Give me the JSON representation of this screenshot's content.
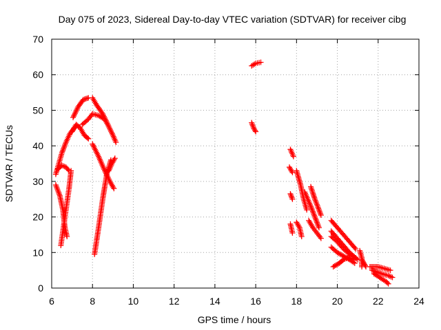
{
  "chart_data": {
    "type": "scatter",
    "title": "Day 075 of 2023, Sidereal Day-to-day VTEC variation (SDTVAR) for receiver cibg",
    "xlabel": "GPS time / hours",
    "ylabel": "SDTVAR / TECUs",
    "xlim": [
      6,
      24
    ],
    "ylim": [
      0,
      70
    ],
    "xticks": [
      6,
      8,
      10,
      12,
      14,
      16,
      18,
      20,
      22,
      24
    ],
    "yticks": [
      0,
      10,
      20,
      30,
      40,
      50,
      60,
      70
    ],
    "grid": true,
    "marker": "+",
    "color": "#ff0000",
    "segments": [
      [
        [
          6.2,
          32
        ],
        [
          6.35,
          35
        ],
        [
          6.5,
          38
        ],
        [
          6.7,
          41
        ],
        [
          6.9,
          43.5
        ],
        [
          7.1,
          45
        ]
      ],
      [
        [
          6.3,
          33.5
        ],
        [
          6.5,
          34.5
        ],
        [
          6.7,
          34
        ],
        [
          6.85,
          33
        ]
      ],
      [
        [
          6.2,
          29
        ],
        [
          6.4,
          26
        ],
        [
          6.55,
          22
        ],
        [
          6.65,
          17
        ],
        [
          6.75,
          14.5
        ]
      ],
      [
        [
          6.45,
          12
        ],
        [
          6.55,
          16
        ],
        [
          6.65,
          20
        ],
        [
          6.75,
          24
        ],
        [
          6.85,
          28
        ],
        [
          6.95,
          33
        ]
      ],
      [
        [
          7.0,
          44
        ],
        [
          7.2,
          46
        ],
        [
          7.4,
          45
        ],
        [
          7.6,
          43
        ],
        [
          7.8,
          42
        ]
      ],
      [
        [
          7.05,
          48
        ],
        [
          7.3,
          51
        ],
        [
          7.55,
          53
        ],
        [
          7.8,
          53.5
        ]
      ],
      [
        [
          7.5,
          46
        ],
        [
          7.8,
          47.5
        ],
        [
          8.0,
          49
        ],
        [
          8.3,
          48.5
        ],
        [
          8.6,
          47.5
        ],
        [
          8.75,
          46
        ]
      ],
      [
        [
          8.0,
          53.5
        ],
        [
          8.2,
          51.5
        ],
        [
          8.5,
          49
        ],
        [
          8.75,
          46
        ],
        [
          9.0,
          43
        ],
        [
          9.15,
          41
        ]
      ],
      [
        [
          8.0,
          40.5
        ],
        [
          8.3,
          37
        ],
        [
          8.6,
          33
        ],
        [
          8.85,
          30
        ],
        [
          9.05,
          28
        ]
      ],
      [
        [
          8.1,
          9.5
        ],
        [
          8.3,
          17
        ],
        [
          8.5,
          25
        ],
        [
          8.7,
          32
        ],
        [
          8.9,
          36
        ]
      ],
      [
        [
          8.8,
          33
        ],
        [
          8.95,
          35
        ],
        [
          9.1,
          36.5
        ]
      ],
      [
        [
          15.8,
          62.5
        ],
        [
          16.0,
          63.2
        ],
        [
          16.25,
          63.5
        ]
      ],
      [
        [
          15.8,
          46.5
        ],
        [
          15.9,
          45
        ],
        [
          16.0,
          44
        ]
      ],
      [
        [
          17.7,
          39
        ],
        [
          17.85,
          37
        ]
      ],
      [
        [
          17.65,
          34
        ],
        [
          17.8,
          32.5
        ]
      ],
      [
        [
          18.0,
          33
        ],
        [
          18.2,
          29
        ],
        [
          18.35,
          25
        ],
        [
          18.5,
          22
        ]
      ],
      [
        [
          17.7,
          26.5
        ],
        [
          17.8,
          25
        ]
      ],
      [
        [
          17.7,
          18
        ],
        [
          17.8,
          15.5
        ]
      ],
      [
        [
          18.0,
          18.5
        ],
        [
          18.15,
          17
        ],
        [
          18.25,
          14.5
        ]
      ],
      [
        [
          18.4,
          27
        ],
        [
          18.7,
          23
        ],
        [
          18.9,
          20
        ],
        [
          19.1,
          17
        ]
      ],
      [
        [
          18.7,
          28.5
        ],
        [
          18.9,
          25
        ],
        [
          19.1,
          22
        ],
        [
          19.2,
          20.5
        ]
      ],
      [
        [
          18.6,
          19
        ],
        [
          18.8,
          17
        ],
        [
          19.0,
          15.5
        ],
        [
          19.2,
          14
        ]
      ],
      [
        [
          19.7,
          19
        ],
        [
          20.0,
          17
        ],
        [
          20.3,
          15
        ],
        [
          20.6,
          13
        ],
        [
          20.9,
          11
        ]
      ],
      [
        [
          19.7,
          16
        ],
        [
          20.0,
          14
        ],
        [
          20.3,
          12
        ],
        [
          20.6,
          10
        ],
        [
          20.9,
          8.5
        ]
      ],
      [
        [
          19.7,
          14.5
        ],
        [
          20.0,
          13
        ],
        [
          20.3,
          11
        ],
        [
          20.6,
          9.5
        ],
        [
          21.0,
          8
        ]
      ],
      [
        [
          19.7,
          11.5
        ],
        [
          20.0,
          10
        ],
        [
          20.3,
          9
        ],
        [
          20.6,
          8
        ],
        [
          20.85,
          7
        ]
      ],
      [
        [
          19.8,
          6
        ],
        [
          20.1,
          7
        ],
        [
          20.3,
          8
        ],
        [
          20.5,
          8.5
        ],
        [
          20.8,
          8
        ]
      ],
      [
        [
          21.1,
          10.5
        ],
        [
          21.2,
          8.5
        ],
        [
          21.2,
          6
        ]
      ],
      [
        [
          21.2,
          8
        ],
        [
          21.3,
          7
        ],
        [
          21.4,
          6
        ]
      ],
      [
        [
          21.6,
          6
        ],
        [
          21.8,
          6
        ],
        [
          22.0,
          6
        ],
        [
          22.3,
          5.5
        ],
        [
          22.6,
          5
        ]
      ],
      [
        [
          21.7,
          5
        ],
        [
          21.95,
          4.5
        ],
        [
          22.2,
          4
        ],
        [
          22.5,
          3.5
        ],
        [
          22.7,
          3
        ]
      ],
      [
        [
          21.8,
          4
        ],
        [
          22.0,
          3.3
        ],
        [
          22.2,
          2.5
        ],
        [
          22.4,
          1.8
        ],
        [
          22.5,
          1.2
        ]
      ]
    ]
  }
}
